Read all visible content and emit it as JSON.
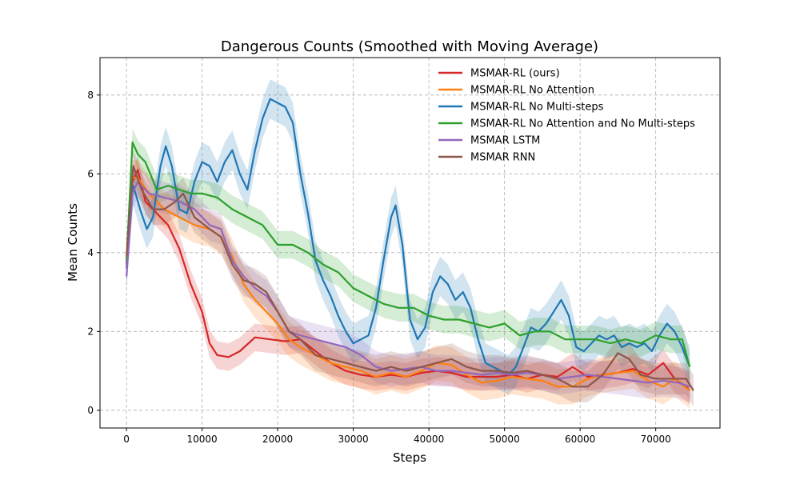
{
  "chart_data": {
    "type": "line",
    "title": "Dangerous Counts (Smoothed with Moving Average)",
    "xlabel": "Steps",
    "ylabel": "Mean Counts",
    "xlim": [
      -3500,
      78500
    ],
    "ylim": [
      -0.45,
      8.95
    ],
    "xticks": [
      0,
      10000,
      20000,
      30000,
      40000,
      50000,
      60000,
      70000
    ],
    "xtick_labels": [
      "0",
      "10000",
      "20000",
      "30000",
      "40000",
      "50000",
      "60000",
      "70000"
    ],
    "yticks": [
      0,
      2,
      4,
      6,
      8
    ],
    "ytick_labels": [
      "0",
      "2",
      "4",
      "6",
      "8"
    ],
    "grid": true,
    "legend_position": "top-right",
    "series": [
      {
        "name": "MSMAR-RL (ours)",
        "color": "#d62728",
        "band": 0.35,
        "points": [
          [
            0,
            3.7
          ],
          [
            800,
            5.8
          ],
          [
            1500,
            6.1
          ],
          [
            2500,
            5.3
          ],
          [
            4000,
            5.0
          ],
          [
            5500,
            4.7
          ],
          [
            7000,
            4.1
          ],
          [
            8500,
            3.2
          ],
          [
            10000,
            2.5
          ],
          [
            11000,
            1.7
          ],
          [
            12000,
            1.4
          ],
          [
            13500,
            1.35
          ],
          [
            15000,
            1.5
          ],
          [
            17000,
            1.85
          ],
          [
            19000,
            1.8
          ],
          [
            21000,
            1.75
          ],
          [
            23000,
            1.8
          ],
          [
            25000,
            1.5
          ],
          [
            27000,
            1.2
          ],
          [
            29000,
            1.0
          ],
          [
            31000,
            0.9
          ],
          [
            33000,
            0.85
          ],
          [
            35000,
            0.9
          ],
          [
            37000,
            0.85
          ],
          [
            39000,
            0.95
          ],
          [
            41000,
            1.0
          ],
          [
            43000,
            0.95
          ],
          [
            45000,
            0.85
          ],
          [
            47000,
            0.85
          ],
          [
            49000,
            0.85
          ],
          [
            51000,
            0.9
          ],
          [
            53000,
            0.8
          ],
          [
            55000,
            0.9
          ],
          [
            57000,
            0.85
          ],
          [
            59000,
            1.1
          ],
          [
            61000,
            0.85
          ],
          [
            63000,
            0.9
          ],
          [
            65000,
            0.95
          ],
          [
            67000,
            1.05
          ],
          [
            69000,
            0.9
          ],
          [
            71000,
            1.2
          ],
          [
            72500,
            0.8
          ],
          [
            74000,
            0.6
          ],
          [
            74500,
            0.5
          ]
        ]
      },
      {
        "name": "MSMAR-RL No Attention",
        "color": "#ff7f0e",
        "band": 0.45,
        "points": [
          [
            0,
            3.8
          ],
          [
            800,
            5.9
          ],
          [
            1500,
            5.9
          ],
          [
            3000,
            5.5
          ],
          [
            5000,
            5.1
          ],
          [
            7000,
            4.9
          ],
          [
            9000,
            4.7
          ],
          [
            11000,
            4.6
          ],
          [
            12500,
            4.4
          ],
          [
            14000,
            3.9
          ],
          [
            15500,
            3.2
          ],
          [
            17000,
            2.8
          ],
          [
            18500,
            2.5
          ],
          [
            20000,
            2.2
          ],
          [
            21500,
            1.8
          ],
          [
            23000,
            1.6
          ],
          [
            25000,
            1.4
          ],
          [
            27000,
            1.2
          ],
          [
            29000,
            1.1
          ],
          [
            31000,
            1.0
          ],
          [
            33000,
            0.85
          ],
          [
            35000,
            0.95
          ],
          [
            37000,
            0.85
          ],
          [
            39000,
            1.0
          ],
          [
            41000,
            1.2
          ],
          [
            43000,
            1.15
          ],
          [
            45000,
            0.9
          ],
          [
            47000,
            0.7
          ],
          [
            49000,
            0.75
          ],
          [
            51000,
            0.85
          ],
          [
            53000,
            0.8
          ],
          [
            55000,
            0.75
          ],
          [
            57000,
            0.6
          ],
          [
            59000,
            0.6
          ],
          [
            61000,
            0.8
          ],
          [
            63000,
            0.9
          ],
          [
            65000,
            0.95
          ],
          [
            67000,
            1.0
          ],
          [
            69000,
            0.75
          ],
          [
            71000,
            0.6
          ],
          [
            72500,
            0.8
          ],
          [
            74500,
            0.5
          ]
        ]
      },
      {
        "name": "MSMAR-RL No Multi-steps",
        "color": "#1f77b4",
        "band": 0.5,
        "points": [
          [
            0,
            3.6
          ],
          [
            900,
            5.7
          ],
          [
            1800,
            5.1
          ],
          [
            2700,
            4.6
          ],
          [
            3500,
            4.9
          ],
          [
            4500,
            6.2
          ],
          [
            5200,
            6.7
          ],
          [
            6000,
            6.2
          ],
          [
            7000,
            5.1
          ],
          [
            8000,
            5.0
          ],
          [
            9000,
            5.8
          ],
          [
            10000,
            6.3
          ],
          [
            11000,
            6.2
          ],
          [
            12000,
            5.8
          ],
          [
            13000,
            6.3
          ],
          [
            14000,
            6.6
          ],
          [
            15000,
            6.0
          ],
          [
            16000,
            5.6
          ],
          [
            17000,
            6.6
          ],
          [
            18000,
            7.4
          ],
          [
            19000,
            7.9
          ],
          [
            20000,
            7.8
          ],
          [
            21000,
            7.7
          ],
          [
            22000,
            7.3
          ],
          [
            23000,
            6.0
          ],
          [
            24000,
            5.0
          ],
          [
            25000,
            3.8
          ],
          [
            26000,
            3.3
          ],
          [
            27000,
            2.9
          ],
          [
            28000,
            2.4
          ],
          [
            29000,
            2.0
          ],
          [
            30000,
            1.7
          ],
          [
            31000,
            1.8
          ],
          [
            32000,
            1.9
          ],
          [
            33000,
            2.6
          ],
          [
            34000,
            3.8
          ],
          [
            35000,
            4.9
          ],
          [
            35600,
            5.2
          ],
          [
            36500,
            4.2
          ],
          [
            37500,
            2.3
          ],
          [
            38500,
            1.8
          ],
          [
            39500,
            2.1
          ],
          [
            40500,
            3.0
          ],
          [
            41500,
            3.4
          ],
          [
            42500,
            3.2
          ],
          [
            43500,
            2.8
          ],
          [
            44500,
            3.0
          ],
          [
            45500,
            2.6
          ],
          [
            46500,
            1.8
          ],
          [
            47500,
            1.2
          ],
          [
            48500,
            1.1
          ],
          [
            49500,
            1.0
          ],
          [
            50500,
            0.9
          ],
          [
            51500,
            1.1
          ],
          [
            52500,
            1.6
          ],
          [
            53500,
            2.1
          ],
          [
            54500,
            2.0
          ],
          [
            55500,
            2.2
          ],
          [
            56500,
            2.5
          ],
          [
            57500,
            2.8
          ],
          [
            58500,
            2.4
          ],
          [
            59500,
            1.6
          ],
          [
            60500,
            1.5
          ],
          [
            61500,
            1.7
          ],
          [
            62500,
            1.9
          ],
          [
            63500,
            1.8
          ],
          [
            64500,
            1.9
          ],
          [
            65500,
            1.6
          ],
          [
            66500,
            1.7
          ],
          [
            67500,
            1.6
          ],
          [
            68500,
            1.7
          ],
          [
            69500,
            1.5
          ],
          [
            70500,
            1.9
          ],
          [
            71500,
            2.2
          ],
          [
            72500,
            2.0
          ],
          [
            73500,
            1.6
          ],
          [
            74500,
            1.1
          ]
        ]
      },
      {
        "name": "MSMAR-RL No Attention and No Multi-steps",
        "color": "#2ca02c",
        "band": 0.35,
        "points": [
          [
            0,
            3.8
          ],
          [
            800,
            6.8
          ],
          [
            1500,
            6.5
          ],
          [
            2500,
            6.3
          ],
          [
            4000,
            5.6
          ],
          [
            5500,
            5.7
          ],
          [
            7000,
            5.6
          ],
          [
            8500,
            5.5
          ],
          [
            10000,
            5.5
          ],
          [
            12000,
            5.4
          ],
          [
            14000,
            5.1
          ],
          [
            16000,
            4.9
          ],
          [
            18000,
            4.7
          ],
          [
            20000,
            4.2
          ],
          [
            22000,
            4.2
          ],
          [
            24000,
            4.0
          ],
          [
            26000,
            3.7
          ],
          [
            28000,
            3.5
          ],
          [
            30000,
            3.1
          ],
          [
            32000,
            2.9
          ],
          [
            34000,
            2.7
          ],
          [
            36000,
            2.6
          ],
          [
            38000,
            2.6
          ],
          [
            40000,
            2.4
          ],
          [
            42000,
            2.3
          ],
          [
            44000,
            2.3
          ],
          [
            46000,
            2.2
          ],
          [
            48000,
            2.1
          ],
          [
            50000,
            2.2
          ],
          [
            52000,
            1.9
          ],
          [
            54000,
            2.0
          ],
          [
            56000,
            2.0
          ],
          [
            58000,
            1.8
          ],
          [
            60000,
            1.8
          ],
          [
            62000,
            1.8
          ],
          [
            64000,
            1.7
          ],
          [
            66000,
            1.8
          ],
          [
            68000,
            1.7
          ],
          [
            70000,
            1.9
          ],
          [
            72000,
            1.8
          ],
          [
            73500,
            1.8
          ],
          [
            74500,
            1.1
          ]
        ]
      },
      {
        "name": "MSMAR LSTM",
        "color": "#9467bd",
        "band": 0.4,
        "points": [
          [
            0,
            3.4
          ],
          [
            800,
            5.5
          ],
          [
            1500,
            5.8
          ],
          [
            3000,
            5.5
          ],
          [
            5000,
            5.4
          ],
          [
            7000,
            5.3
          ],
          [
            9000,
            5.1
          ],
          [
            11000,
            4.7
          ],
          [
            12500,
            4.6
          ],
          [
            14000,
            3.8
          ],
          [
            15500,
            3.4
          ],
          [
            17000,
            3.1
          ],
          [
            18500,
            2.9
          ],
          [
            20000,
            2.5
          ],
          [
            21500,
            2.0
          ],
          [
            23000,
            1.9
          ],
          [
            25000,
            1.8
          ],
          [
            27000,
            1.7
          ],
          [
            29000,
            1.6
          ],
          [
            31000,
            1.4
          ],
          [
            33000,
            1.1
          ],
          [
            35000,
            1.0
          ],
          [
            37000,
            1.05
          ],
          [
            39000,
            1.1
          ],
          [
            41000,
            1.0
          ],
          [
            43000,
            1.0
          ],
          [
            45000,
            0.95
          ],
          [
            47000,
            0.9
          ],
          [
            49000,
            0.95
          ],
          [
            51000,
            0.9
          ],
          [
            53000,
            0.95
          ],
          [
            55000,
            0.9
          ],
          [
            57000,
            0.8
          ],
          [
            59000,
            0.85
          ],
          [
            61000,
            0.9
          ],
          [
            63000,
            0.85
          ],
          [
            65000,
            0.8
          ],
          [
            67000,
            0.75
          ],
          [
            69000,
            0.7
          ],
          [
            71000,
            0.75
          ],
          [
            73000,
            0.7
          ],
          [
            74500,
            0.6
          ]
        ]
      },
      {
        "name": "MSMAR RNN",
        "color": "#8c564b",
        "band": 0.4,
        "points": [
          [
            0,
            3.9
          ],
          [
            900,
            6.2
          ],
          [
            2000,
            5.6
          ],
          [
            3500,
            5.1
          ],
          [
            5000,
            5.1
          ],
          [
            6500,
            5.3
          ],
          [
            7500,
            5.5
          ],
          [
            9000,
            4.9
          ],
          [
            11000,
            4.6
          ],
          [
            12500,
            4.4
          ],
          [
            14000,
            3.7
          ],
          [
            15500,
            3.3
          ],
          [
            17000,
            3.2
          ],
          [
            18500,
            3.0
          ],
          [
            20000,
            2.5
          ],
          [
            21500,
            2.0
          ],
          [
            23000,
            1.8
          ],
          [
            25000,
            1.4
          ],
          [
            27000,
            1.3
          ],
          [
            29000,
            1.2
          ],
          [
            31000,
            1.1
          ],
          [
            33000,
            1.0
          ],
          [
            35000,
            1.1
          ],
          [
            37000,
            1.0
          ],
          [
            39000,
            1.1
          ],
          [
            41000,
            1.2
          ],
          [
            43000,
            1.3
          ],
          [
            45000,
            1.1
          ],
          [
            47000,
            1.0
          ],
          [
            49000,
            1.0
          ],
          [
            51000,
            0.95
          ],
          [
            53000,
            1.0
          ],
          [
            55000,
            0.9
          ],
          [
            57000,
            0.8
          ],
          [
            59000,
            0.6
          ],
          [
            61000,
            0.6
          ],
          [
            63000,
            0.9
          ],
          [
            65000,
            1.45
          ],
          [
            66500,
            1.3
          ],
          [
            68000,
            0.9
          ],
          [
            70000,
            0.8
          ],
          [
            72000,
            0.8
          ],
          [
            74000,
            0.8
          ],
          [
            75000,
            0.5
          ]
        ]
      }
    ]
  }
}
